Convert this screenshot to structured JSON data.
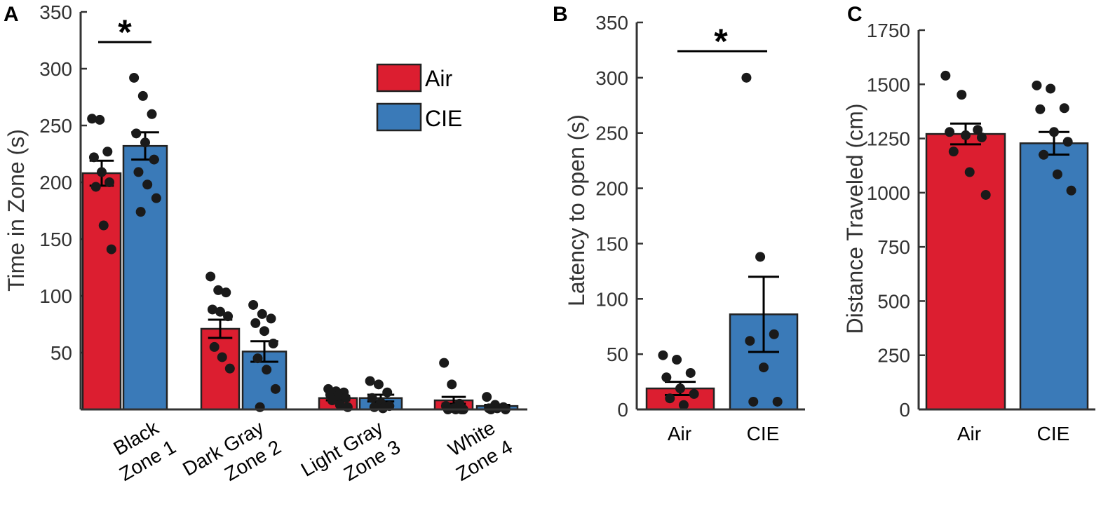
{
  "colors": {
    "air": "#dc1e30",
    "cie": "#3a7ab8"
  },
  "legend": [
    {
      "label": "Air",
      "key": "air"
    },
    {
      "label": "CIE",
      "key": "cie"
    }
  ],
  "chart_data": [
    {
      "panel": "A",
      "type": "bar",
      "ylabel": "Time in Zone (s)",
      "ylim": [
        0,
        350
      ],
      "yticks": [
        50,
        100,
        150,
        200,
        250,
        300,
        350
      ],
      "categories": [
        {
          "line1": "Black",
          "line2": "Zone 1"
        },
        {
          "line1": "Dark Gray",
          "line2": "Zone 2"
        },
        {
          "line1": "Light Gray",
          "line2": "Zone 3"
        },
        {
          "line1": "White",
          "line2": "Zone 4"
        }
      ],
      "series": [
        {
          "name": "Air",
          "values": [
            208,
            71,
            10,
            8
          ],
          "sem": [
            11,
            8,
            2,
            3
          ],
          "points": [
            [
              256,
              255,
              227,
              222,
              209,
              200,
              196,
              162,
              141
            ],
            [
              117,
              105,
              103,
              88,
              86,
              82,
              55,
              46,
              36
            ],
            [
              18,
              16,
              15,
              13,
              12,
              10,
              8,
              4,
              2
            ],
            [
              41,
              22,
              5,
              3,
              1,
              0,
              0,
              0,
              0
            ]
          ]
        },
        {
          "name": "CIE",
          "values": [
            232,
            51,
            10,
            3
          ],
          "sem": [
            12,
            9,
            3,
            1
          ],
          "points": [
            [
              292,
              276,
              260,
              243,
              235,
              220,
              209,
              198,
              186,
              174
            ],
            [
              92,
              84,
              80,
              76,
              69,
              58,
              45,
              35,
              18,
              2
            ],
            [
              25,
              22,
              15,
              10,
              6,
              3,
              2,
              1
            ],
            [
              11,
              4,
              2,
              1,
              1,
              0,
              0
            ]
          ]
        }
      ],
      "significance": {
        "category": 0,
        "label": "*"
      }
    },
    {
      "panel": "B",
      "type": "bar",
      "ylabel": "Latency to open (s)",
      "ylim": [
        0,
        350
      ],
      "yticks": [
        0,
        50,
        100,
        150,
        200,
        250,
        300,
        350
      ],
      "categories": [
        "Air",
        "CIE"
      ],
      "values": [
        19,
        86
      ],
      "sem": [
        6,
        34
      ],
      "points": [
        [
          49,
          45,
          33,
          29,
          19,
          14,
          10,
          4
        ],
        [
          300,
          138,
          68,
          62,
          38,
          7,
          7
        ]
      ],
      "significance": {
        "label": "*"
      }
    },
    {
      "panel": "C",
      "type": "bar",
      "ylabel": "Distance Traveled (cm)",
      "ylim": [
        0,
        1750
      ],
      "yticks": [
        0,
        250,
        500,
        750,
        1000,
        1250,
        1500,
        1750
      ],
      "categories": [
        "Air",
        "CIE"
      ],
      "values": [
        1271,
        1228
      ],
      "sem": [
        48,
        52
      ],
      "points": [
        [
          1540,
          1452,
          1290,
          1280,
          1265,
          1255,
          1190,
          1095,
          990
        ],
        [
          1495,
          1480,
          1390,
          1385,
          1280,
          1235,
          1175,
          1085,
          1010
        ]
      ]
    }
  ]
}
